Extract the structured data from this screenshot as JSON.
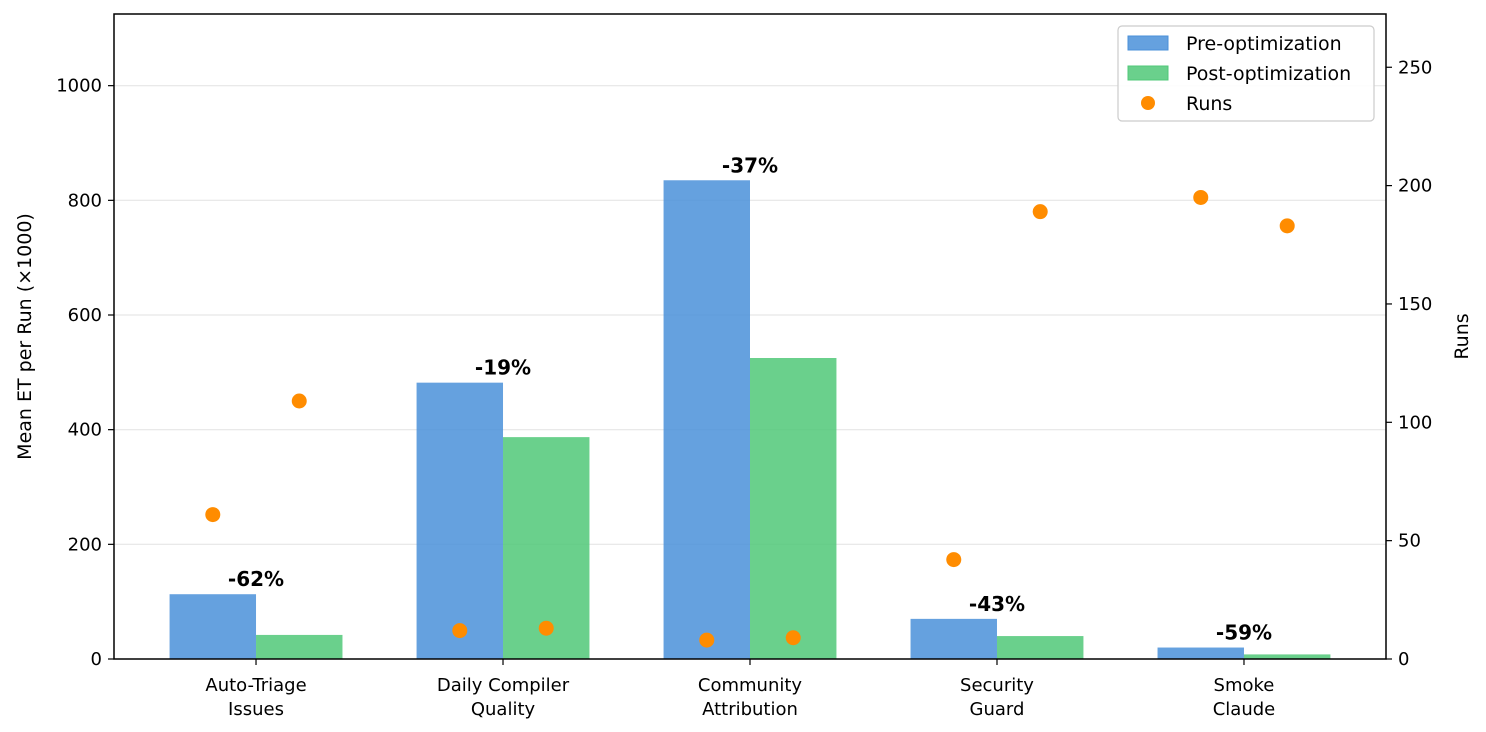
{
  "chart_data": {
    "type": "bar",
    "categories": [
      [
        "Auto-Triage",
        "Issues"
      ],
      [
        "Daily Compiler",
        "Quality"
      ],
      [
        "Community",
        "Attribution"
      ],
      [
        "Security",
        "Guard"
      ],
      [
        "Smoke",
        "Claude"
      ]
    ],
    "series": [
      {
        "name": "Pre-optimization",
        "color": "#4a90d9",
        "values": [
          113,
          482,
          835,
          70,
          20
        ]
      },
      {
        "name": "Post-optimization",
        "color": "#50c878",
        "values": [
          42,
          387,
          525,
          40,
          8
        ]
      }
    ],
    "runs": {
      "name": "Runs",
      "color": "#ff8c00",
      "pre": [
        61,
        12,
        8,
        42,
        195
      ],
      "post": [
        109,
        13,
        9,
        189,
        183
      ]
    },
    "change_labels": [
      "-62%",
      "-19%",
      "-37%",
      "-43%",
      "-59%"
    ],
    "ylabel": "Mean ET per Run (×1000)",
    "y2label": "Runs",
    "ylim": [
      0,
      1125
    ],
    "y2lim": [
      0,
      272.5
    ],
    "yticks": [
      0,
      200,
      400,
      600,
      800,
      1000
    ],
    "y2ticks": [
      0,
      50,
      100,
      150,
      200,
      250
    ],
    "grid": "horizontal",
    "legend_position": "top-right"
  }
}
